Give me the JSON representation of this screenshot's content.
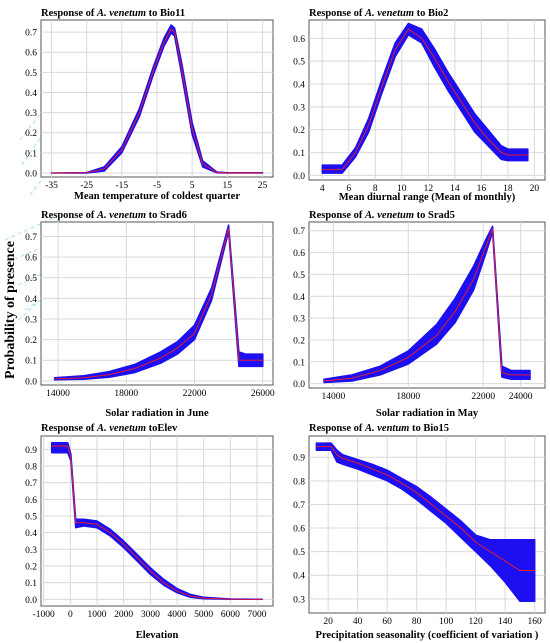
{
  "figure": {
    "ylabel": "Probability of presence",
    "band_color": "#1c0ff0",
    "mean_color": "#ff1a1a"
  },
  "chart_data": [
    {
      "type": "area",
      "title_prefix": "Response of ",
      "title_species": "A. venetum",
      "title_suffix": " to Bio11",
      "xlabel": "Mean temperature of coldest quarter",
      "xlim": [
        -38,
        28
      ],
      "ylim": [
        -0.02,
        0.76
      ],
      "xticks": [
        -35,
        -25,
        -15,
        -5,
        5,
        15,
        25
      ],
      "yticks": [
        0,
        0.1,
        0.2,
        0.3,
        0.4,
        0.5,
        0.6,
        0.7
      ],
      "ytick_labels": [
        "0.0",
        "0.1",
        "0.2",
        "0.3",
        "0.4",
        "0.5",
        "0.6",
        "0.7"
      ],
      "x": [
        -35,
        -25,
        -20,
        -15,
        -10,
        -6,
        -3,
        -1,
        0,
        2,
        5,
        8,
        12,
        15,
        25
      ],
      "upper": [
        0,
        0.002,
        0.03,
        0.13,
        0.32,
        0.53,
        0.67,
        0.735,
        0.72,
        0.55,
        0.25,
        0.06,
        0.005,
        0.001,
        0.001
      ],
      "mean": [
        0,
        0.001,
        0.02,
        0.115,
        0.3,
        0.51,
        0.65,
        0.715,
        0.7,
        0.52,
        0.22,
        0.045,
        0.003,
        0,
        0
      ],
      "lower": [
        0,
        0,
        0.01,
        0.1,
        0.28,
        0.49,
        0.63,
        0.695,
        0.68,
        0.49,
        0.19,
        0.03,
        0.001,
        0,
        0
      ]
    },
    {
      "type": "area",
      "title_prefix": "Response of ",
      "title_species": "A. venetum",
      "title_suffix": " to Bio2",
      "xlabel": "Mean diurnal range (Mean of monthly)",
      "xlim": [
        3,
        20.8
      ],
      "ylim": [
        -0.02,
        0.68
      ],
      "xticks": [
        4,
        6,
        8,
        10,
        12,
        14,
        16,
        18,
        20
      ],
      "yticks": [
        0,
        0.1,
        0.2,
        0.3,
        0.4,
        0.5,
        0.6
      ],
      "ytick_labels": [
        "0.0",
        "0.1",
        "0.2",
        "0.3",
        "0.4",
        "0.5",
        "0.6"
      ],
      "x": [
        4,
        5.5,
        6.5,
        7.5,
        8.5,
        9.5,
        10.5,
        11.5,
        12.5,
        13.5,
        14.5,
        15.5,
        16.5,
        17.5,
        18,
        19.5
      ],
      "upper": [
        0.045,
        0.045,
        0.12,
        0.25,
        0.42,
        0.58,
        0.665,
        0.64,
        0.55,
        0.45,
        0.36,
        0.27,
        0.2,
        0.13,
        0.115,
        0.115
      ],
      "mean": [
        0.025,
        0.025,
        0.1,
        0.22,
        0.39,
        0.55,
        0.64,
        0.6,
        0.51,
        0.41,
        0.32,
        0.23,
        0.16,
        0.1,
        0.09,
        0.09
      ],
      "lower": [
        0.01,
        0.01,
        0.08,
        0.19,
        0.36,
        0.52,
        0.615,
        0.58,
        0.47,
        0.37,
        0.28,
        0.19,
        0.13,
        0.07,
        0.065,
        0.065
      ]
    },
    {
      "type": "area",
      "title_prefix": "Response of ",
      "title_species": "A. venetum",
      "title_suffix": " to Srad6",
      "xlabel": "Solar radiation in June",
      "xlim": [
        13000,
        26600
      ],
      "ylim": [
        -0.02,
        0.77
      ],
      "xticks": [
        14000,
        18000,
        22000,
        26000
      ],
      "yticks": [
        0,
        0.1,
        0.2,
        0.3,
        0.4,
        0.5,
        0.6,
        0.7
      ],
      "ytick_labels": [
        "0.0",
        "0.1",
        "0.2",
        "0.3",
        "0.4",
        "0.5",
        "0.6",
        "0.7"
      ],
      "x": [
        13800,
        15500,
        17000,
        18500,
        20000,
        21000,
        22000,
        23000,
        24000,
        24600,
        25000,
        26000
      ],
      "upper": [
        0.015,
        0.025,
        0.045,
        0.08,
        0.14,
        0.19,
        0.27,
        0.45,
        0.755,
        0.14,
        0.13,
        0.13
      ],
      "mean": [
        0.01,
        0.015,
        0.03,
        0.06,
        0.11,
        0.16,
        0.23,
        0.42,
        0.74,
        0.1,
        0.1,
        0.1
      ],
      "lower": [
        0.005,
        0.008,
        0.018,
        0.04,
        0.085,
        0.13,
        0.2,
        0.39,
        0.725,
        0.07,
        0.07,
        0.07
      ]
    },
    {
      "type": "area",
      "title_prefix": "Response of ",
      "title_species": "A. venetum",
      "title_suffix": " to Srad5",
      "xlabel": "Solar radiation in May",
      "xlim": [
        12700,
        25300
      ],
      "ylim": [
        -0.02,
        0.74
      ],
      "xticks": [
        14000,
        18000,
        22000,
        24000
      ],
      "yticks": [
        0,
        0.1,
        0.2,
        0.3,
        0.4,
        0.5,
        0.6,
        0.7
      ],
      "ytick_labels": [
        "0.0",
        "0.1",
        "0.2",
        "0.3",
        "0.4",
        "0.5",
        "0.6",
        "0.7"
      ],
      "x": [
        13500,
        15000,
        16500,
        18000,
        19500,
        20500,
        21500,
        22200,
        22500,
        23000,
        23500,
        24500
      ],
      "upper": [
        0.02,
        0.04,
        0.08,
        0.15,
        0.27,
        0.39,
        0.54,
        0.67,
        0.72,
        0.08,
        0.06,
        0.06
      ],
      "mean": [
        0.012,
        0.025,
        0.06,
        0.12,
        0.22,
        0.33,
        0.48,
        0.64,
        0.71,
        0.05,
        0.04,
        0.04
      ],
      "lower": [
        0.005,
        0.012,
        0.04,
        0.09,
        0.18,
        0.28,
        0.43,
        0.61,
        0.695,
        0.03,
        0.02,
        0.02
      ]
    },
    {
      "type": "area",
      "title_prefix": "Response of ",
      "title_species": "A. venetum",
      "title_suffix": " toElev",
      "xlabel": "Elevation",
      "xlim": [
        -1100,
        7600
      ],
      "ylim": [
        -0.04,
        0.98
      ],
      "xticks": [
        -1000,
        0,
        1000,
        2000,
        3000,
        4000,
        5000,
        6000,
        7000
      ],
      "yticks": [
        0,
        0.1,
        0.2,
        0.3,
        0.4,
        0.5,
        0.6,
        0.7,
        0.8,
        0.9
      ],
      "ytick_labels": [
        "0.0",
        "0.1",
        "0.2",
        "0.3",
        "0.4",
        "0.5",
        "0.6",
        "0.7",
        "0.8",
        "0.9"
      ],
      "x": [
        -700,
        -100,
        20,
        200,
        500,
        1000,
        1500,
        2000,
        2500,
        3000,
        3500,
        4000,
        4500,
        5000,
        6000,
        7200
      ],
      "upper": [
        0.94,
        0.94,
        0.87,
        0.48,
        0.48,
        0.47,
        0.42,
        0.35,
        0.27,
        0.19,
        0.12,
        0.065,
        0.03,
        0.012,
        0.002,
        0
      ],
      "mean": [
        0.92,
        0.92,
        0.85,
        0.46,
        0.46,
        0.45,
        0.4,
        0.33,
        0.25,
        0.17,
        0.1,
        0.05,
        0.02,
        0.007,
        0.001,
        0
      ],
      "lower": [
        0.88,
        0.88,
        0.83,
        0.43,
        0.44,
        0.43,
        0.38,
        0.31,
        0.23,
        0.15,
        0.085,
        0.04,
        0.012,
        0.003,
        0,
        0
      ]
    },
    {
      "type": "area",
      "title_prefix": "Response of ",
      "title_species": "A. ventum",
      "title_suffix": " to Bio15",
      "xlabel": "Precipitation seasonality (coefficient of variation )",
      "xlim": [
        7,
        167
      ],
      "ylim": [
        0.24,
        0.99
      ],
      "xticks": [
        20,
        40,
        60,
        80,
        100,
        120,
        140,
        160
      ],
      "yticks": [
        0.3,
        0.4,
        0.5,
        0.6,
        0.7,
        0.8,
        0.9
      ],
      "ytick_labels": [
        "0.3",
        "0.4",
        "0.5",
        "0.6",
        "0.7",
        "0.8",
        "0.9"
      ],
      "x": [
        12,
        22,
        26,
        30,
        40,
        50,
        60,
        70,
        80,
        90,
        100,
        110,
        120,
        130,
        140,
        150,
        160
      ],
      "upper": [
        0.96,
        0.96,
        0.93,
        0.91,
        0.89,
        0.87,
        0.845,
        0.81,
        0.775,
        0.73,
        0.68,
        0.63,
        0.57,
        0.55,
        0.55,
        0.55,
        0.55
      ],
      "mean": [
        0.945,
        0.945,
        0.91,
        0.895,
        0.875,
        0.85,
        0.825,
        0.79,
        0.75,
        0.7,
        0.65,
        0.6,
        0.54,
        0.5,
        0.46,
        0.42,
        0.42
      ],
      "lower": [
        0.93,
        0.93,
        0.88,
        0.87,
        0.85,
        0.825,
        0.8,
        0.765,
        0.72,
        0.67,
        0.62,
        0.56,
        0.5,
        0.44,
        0.37,
        0.29,
        0.29
      ]
    }
  ]
}
